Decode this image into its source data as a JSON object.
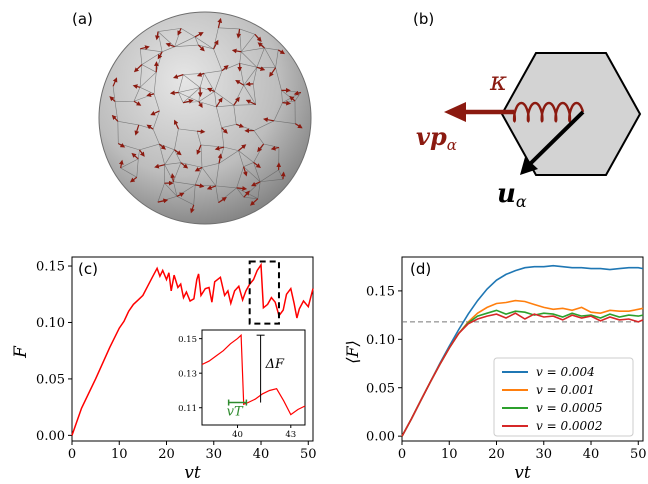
{
  "panels": {
    "a": "(a)",
    "b": "(b)",
    "c": "(c)",
    "d": "(d)"
  },
  "diagram": {
    "kappa": "κ",
    "velocity_label": "vp",
    "velocity_sub": "α",
    "displacement_label": "u",
    "displacement_sub": "α",
    "colors": {
      "arrow": "#8b1a10",
      "cell_fill": "#d3d3d3",
      "u_arrow": "#000000"
    }
  },
  "inset": {
    "delta_label": "ΔF",
    "vT_label": "vT",
    "colors": {
      "vT": "#2e8b2e",
      "line": "#ff0000"
    }
  },
  "chart_data": [
    {
      "type": "line",
      "panel": "c",
      "xlabel": "vt",
      "ylabel": "F",
      "xlim": [
        0,
        51
      ],
      "ylim": [
        -0.005,
        0.158
      ],
      "xticks": [
        0,
        10,
        20,
        30,
        40,
        50
      ],
      "yticks": [
        0.0,
        0.05,
        0.1,
        0.15
      ],
      "xtick_labels": [
        "0",
        "10",
        "20",
        "30",
        "40",
        "50"
      ],
      "ytick_labels": [
        "0.00",
        "0.05",
        "0.10",
        "0.15"
      ],
      "color": "#ff0000",
      "x": [
        0,
        2,
        5,
        8,
        10,
        11,
        12,
        13,
        14,
        15,
        16,
        17,
        18,
        18.6,
        19.2,
        20,
        20.5,
        21,
        21.6,
        22.4,
        23,
        23.6,
        24.2,
        25,
        25.8,
        26.4,
        26.8,
        27.3,
        28.2,
        29,
        29.6,
        30.2,
        31.4,
        32.3,
        33,
        33.6,
        34.4,
        35.3,
        36.1,
        36.8,
        37.6,
        38.4,
        39.2,
        40,
        40.5,
        41.4,
        42.2,
        43,
        43.8,
        44.7,
        45.4,
        46.3,
        47,
        47.6,
        48.1,
        49,
        50,
        51
      ],
      "y": [
        0.0,
        0.024,
        0.05,
        0.078,
        0.095,
        0.101,
        0.11,
        0.116,
        0.12,
        0.124,
        0.132,
        0.14,
        0.148,
        0.141,
        0.146,
        0.138,
        0.144,
        0.128,
        0.142,
        0.131,
        0.134,
        0.122,
        0.127,
        0.119,
        0.121,
        0.138,
        0.143,
        0.124,
        0.13,
        0.131,
        0.118,
        0.136,
        0.14,
        0.124,
        0.128,
        0.117,
        0.128,
        0.132,
        0.12,
        0.128,
        0.134,
        0.138,
        0.146,
        0.151,
        0.113,
        0.116,
        0.122,
        0.118,
        0.106,
        0.111,
        0.125,
        0.13,
        0.117,
        0.104,
        0.112,
        0.119,
        0.114,
        0.13
      ]
    },
    {
      "type": "line",
      "panel": "c-inset",
      "xlim": [
        38,
        43.8
      ],
      "ylim": [
        0.1,
        0.155
      ],
      "xticks": [
        40,
        43
      ],
      "yticks": [
        0.11,
        0.13,
        0.15
      ],
      "xtick_labels": [
        "40",
        "43"
      ],
      "ytick_labels": [
        "0.11",
        "0.13",
        "0.15"
      ],
      "color": "#ff0000",
      "x": [
        38,
        38.4,
        38.8,
        39.2,
        39.6,
        40.0,
        40.2,
        40.35,
        40.6,
        41.0,
        41.4,
        41.8,
        42.2,
        42.6,
        43.0,
        43.4,
        43.8
      ],
      "y": [
        0.135,
        0.137,
        0.14,
        0.143,
        0.147,
        0.15,
        0.152,
        0.112,
        0.113,
        0.115,
        0.118,
        0.12,
        0.121,
        0.114,
        0.106,
        0.109,
        0.111
      ],
      "delta_x": 41.3,
      "delta_from": 0.113,
      "delta_to": 0.152,
      "vT_from": 39.5,
      "vT_to": 40.5,
      "vT_y": 0.113
    },
    {
      "type": "line",
      "panel": "d",
      "xlabel": "⟨F⟩",
      "xlabel_x": "vt",
      "ylabel": "⟨F⟩",
      "xlim": [
        0,
        51
      ],
      "ylim": [
        -0.005,
        0.185
      ],
      "xticks": [
        0,
        10,
        20,
        30,
        40,
        50
      ],
      "yticks": [
        0.0,
        0.05,
        0.1,
        0.15
      ],
      "xtick_labels": [
        "0",
        "10",
        "20",
        "30",
        "40",
        "50"
      ],
      "ytick_labels": [
        "0.00",
        "0.05",
        "0.10",
        "0.15"
      ],
      "reference_line": 0.118,
      "x": [
        0,
        2,
        4,
        6,
        8,
        10,
        12,
        14,
        16,
        18,
        20,
        22,
        24,
        26,
        28,
        30,
        32,
        34,
        36,
        38,
        40,
        42,
        44,
        46,
        48,
        50,
        51
      ],
      "series": [
        {
          "name": "v = 0.004",
          "color": "#1f77b4",
          "values": [
            0.0,
            0.018,
            0.037,
            0.056,
            0.075,
            0.093,
            0.11,
            0.126,
            0.14,
            0.152,
            0.161,
            0.167,
            0.171,
            0.174,
            0.175,
            0.175,
            0.176,
            0.175,
            0.174,
            0.174,
            0.173,
            0.173,
            0.172,
            0.173,
            0.174,
            0.174,
            0.173
          ]
        },
        {
          "name": "v = 0.001",
          "color": "#ff7f0e",
          "values": [
            0.0,
            0.018,
            0.037,
            0.056,
            0.074,
            0.091,
            0.106,
            0.118,
            0.127,
            0.133,
            0.137,
            0.138,
            0.14,
            0.139,
            0.136,
            0.133,
            0.131,
            0.132,
            0.13,
            0.133,
            0.128,
            0.127,
            0.13,
            0.129,
            0.129,
            0.131,
            0.132
          ]
        },
        {
          "name": "v = 0.0005",
          "color": "#2ca02c",
          "values": [
            0.0,
            0.018,
            0.037,
            0.056,
            0.074,
            0.091,
            0.106,
            0.117,
            0.124,
            0.127,
            0.13,
            0.126,
            0.129,
            0.128,
            0.125,
            0.127,
            0.126,
            0.123,
            0.127,
            0.124,
            0.125,
            0.122,
            0.126,
            0.123,
            0.125,
            0.124,
            0.125
          ]
        },
        {
          "name": "v = 0.0002",
          "color": "#d62728",
          "values": [
            0.0,
            0.018,
            0.037,
            0.056,
            0.074,
            0.091,
            0.106,
            0.116,
            0.121,
            0.124,
            0.126,
            0.122,
            0.127,
            0.121,
            0.126,
            0.123,
            0.124,
            0.12,
            0.125,
            0.122,
            0.124,
            0.119,
            0.123,
            0.12,
            0.121,
            0.118,
            0.12
          ]
        }
      ]
    }
  ]
}
